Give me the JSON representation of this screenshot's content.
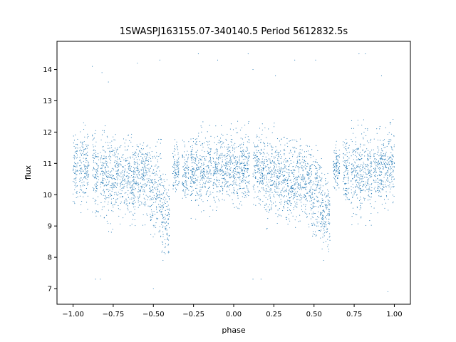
{
  "chart_data": {
    "type": "scatter",
    "title": "1SWASPJ163155.07-340140.5 Period 5612832.5s",
    "xlabel": "phase",
    "ylabel": "flux",
    "xlim": [
      -1.1,
      1.1
    ],
    "ylim": [
      6.5,
      14.9
    ],
    "xticks": [
      -1.0,
      -0.75,
      -0.5,
      -0.25,
      0.0,
      0.25,
      0.5,
      0.75,
      1.0
    ],
    "xtick_labels": [
      "−1.00",
      "−0.75",
      "−0.50",
      "−0.25",
      "0.00",
      "0.25",
      "0.50",
      "0.75",
      "1.00"
    ],
    "yticks": [
      7,
      8,
      9,
      10,
      11,
      12,
      13,
      14
    ],
    "ytick_labels": [
      "7",
      "8",
      "9",
      "10",
      "11",
      "12",
      "13",
      "14"
    ],
    "grid": false,
    "point_color": "#1f77b4",
    "series": [
      {
        "description": "phase-folded light curve; dense vertical bands of observations (phase shown twice, -1 to 1)",
        "clusters": [
          {
            "x": [
              -1.0,
              -0.97
            ],
            "y_center": 11.0,
            "y_spread": 0.6,
            "y_min": 9.6,
            "y_max": 12.6
          },
          {
            "x": [
              -0.96,
              -0.9
            ],
            "y_center": 10.8,
            "y_spread": 0.6,
            "y_min": 9.4,
            "y_max": 12.9
          },
          {
            "x": [
              -0.88,
              -0.84
            ],
            "y_center": 10.7,
            "y_spread": 0.6,
            "y_min": 9.0,
            "y_max": 12.4
          },
          {
            "x": [
              -0.83,
              -0.7
            ],
            "y_center": 10.6,
            "y_spread": 0.6,
            "y_min": 8.8,
            "y_max": 12.3
          },
          {
            "x": [
              -0.7,
              -0.62
            ],
            "y_center": 10.4,
            "y_spread": 0.6,
            "y_min": 8.5,
            "y_max": 12.0
          },
          {
            "x": [
              -0.62,
              -0.52
            ],
            "y_center": 10.5,
            "y_spread": 0.6,
            "y_min": 8.9,
            "y_max": 11.8
          },
          {
            "x": [
              -0.52,
              -0.45
            ],
            "y_center": 10.1,
            "y_spread": 0.7,
            "y_min": 8.6,
            "y_max": 11.9
          },
          {
            "x": [
              -0.45,
              -0.4
            ],
            "y_center": 9.4,
            "y_spread": 0.6,
            "y_min": 8.1,
            "y_max": 10.8
          },
          {
            "x": [
              -0.38,
              -0.34
            ],
            "y_center": 10.8,
            "y_spread": 0.4,
            "y_min": 10.0,
            "y_max": 11.8
          },
          {
            "x": [
              -0.32,
              -0.28
            ],
            "y_center": 10.7,
            "y_spread": 0.5,
            "y_min": 9.8,
            "y_max": 11.9
          },
          {
            "x": [
              -0.27,
              -0.14
            ],
            "y_center": 10.7,
            "y_spread": 0.6,
            "y_min": 9.0,
            "y_max": 12.5
          },
          {
            "x": [
              -0.13,
              -0.08
            ],
            "y_center": 10.8,
            "y_spread": 0.5,
            "y_min": 9.4,
            "y_max": 12.2
          },
          {
            "x": [
              -0.08,
              0.1
            ],
            "y_center": 10.9,
            "y_spread": 0.55,
            "y_min": 9.5,
            "y_max": 12.7
          },
          {
            "x": [
              0.12,
              0.18
            ],
            "y_center": 10.9,
            "y_spread": 0.5,
            "y_min": 9.6,
            "y_max": 12.3
          },
          {
            "x": [
              0.18,
              0.3
            ],
            "y_center": 10.6,
            "y_spread": 0.6,
            "y_min": 8.8,
            "y_max": 12.3
          },
          {
            "x": [
              0.3,
              0.38
            ],
            "y_center": 10.4,
            "y_spread": 0.6,
            "y_min": 8.5,
            "y_max": 12.0
          },
          {
            "x": [
              0.38,
              0.48
            ],
            "y_center": 10.5,
            "y_spread": 0.6,
            "y_min": 8.9,
            "y_max": 11.8
          },
          {
            "x": [
              0.48,
              0.55
            ],
            "y_center": 10.1,
            "y_spread": 0.7,
            "y_min": 8.6,
            "y_max": 11.9
          },
          {
            "x": [
              0.55,
              0.6
            ],
            "y_center": 9.4,
            "y_spread": 0.6,
            "y_min": 8.1,
            "y_max": 10.8
          },
          {
            "x": [
              0.62,
              0.66
            ],
            "y_center": 10.8,
            "y_spread": 0.4,
            "y_min": 10.0,
            "y_max": 11.8
          },
          {
            "x": [
              0.68,
              0.72
            ],
            "y_center": 10.7,
            "y_spread": 0.5,
            "y_min": 9.8,
            "y_max": 11.9
          },
          {
            "x": [
              0.73,
              0.86
            ],
            "y_center": 10.7,
            "y_spread": 0.6,
            "y_min": 9.0,
            "y_max": 12.5
          },
          {
            "x": [
              0.87,
              0.92
            ],
            "y_center": 10.8,
            "y_spread": 0.5,
            "y_min": 9.4,
            "y_max": 12.2
          },
          {
            "x": [
              0.92,
              1.0
            ],
            "y_center": 10.9,
            "y_spread": 0.55,
            "y_min": 9.5,
            "y_max": 12.6
          }
        ],
        "outliers": [
          [
            -0.88,
            14.1
          ],
          [
            -0.82,
            13.9
          ],
          [
            -0.78,
            13.6
          ],
          [
            -0.6,
            14.2
          ],
          [
            -0.46,
            14.3
          ],
          [
            -0.22,
            14.5
          ],
          [
            -0.1,
            14.3
          ],
          [
            0.09,
            14.5
          ],
          [
            0.12,
            14.0
          ],
          [
            0.26,
            13.8
          ],
          [
            0.38,
            14.3
          ],
          [
            0.51,
            14.3
          ],
          [
            0.78,
            14.5
          ],
          [
            0.82,
            14.5
          ],
          [
            0.92,
            13.8
          ],
          [
            -0.86,
            7.3
          ],
          [
            -0.83,
            7.3
          ],
          [
            0.12,
            7.3
          ],
          [
            0.17,
            7.3
          ],
          [
            -0.5,
            7.0
          ],
          [
            0.96,
            6.9
          ],
          [
            0.56,
            7.9
          ],
          [
            -0.44,
            7.9
          ]
        ]
      }
    ]
  }
}
